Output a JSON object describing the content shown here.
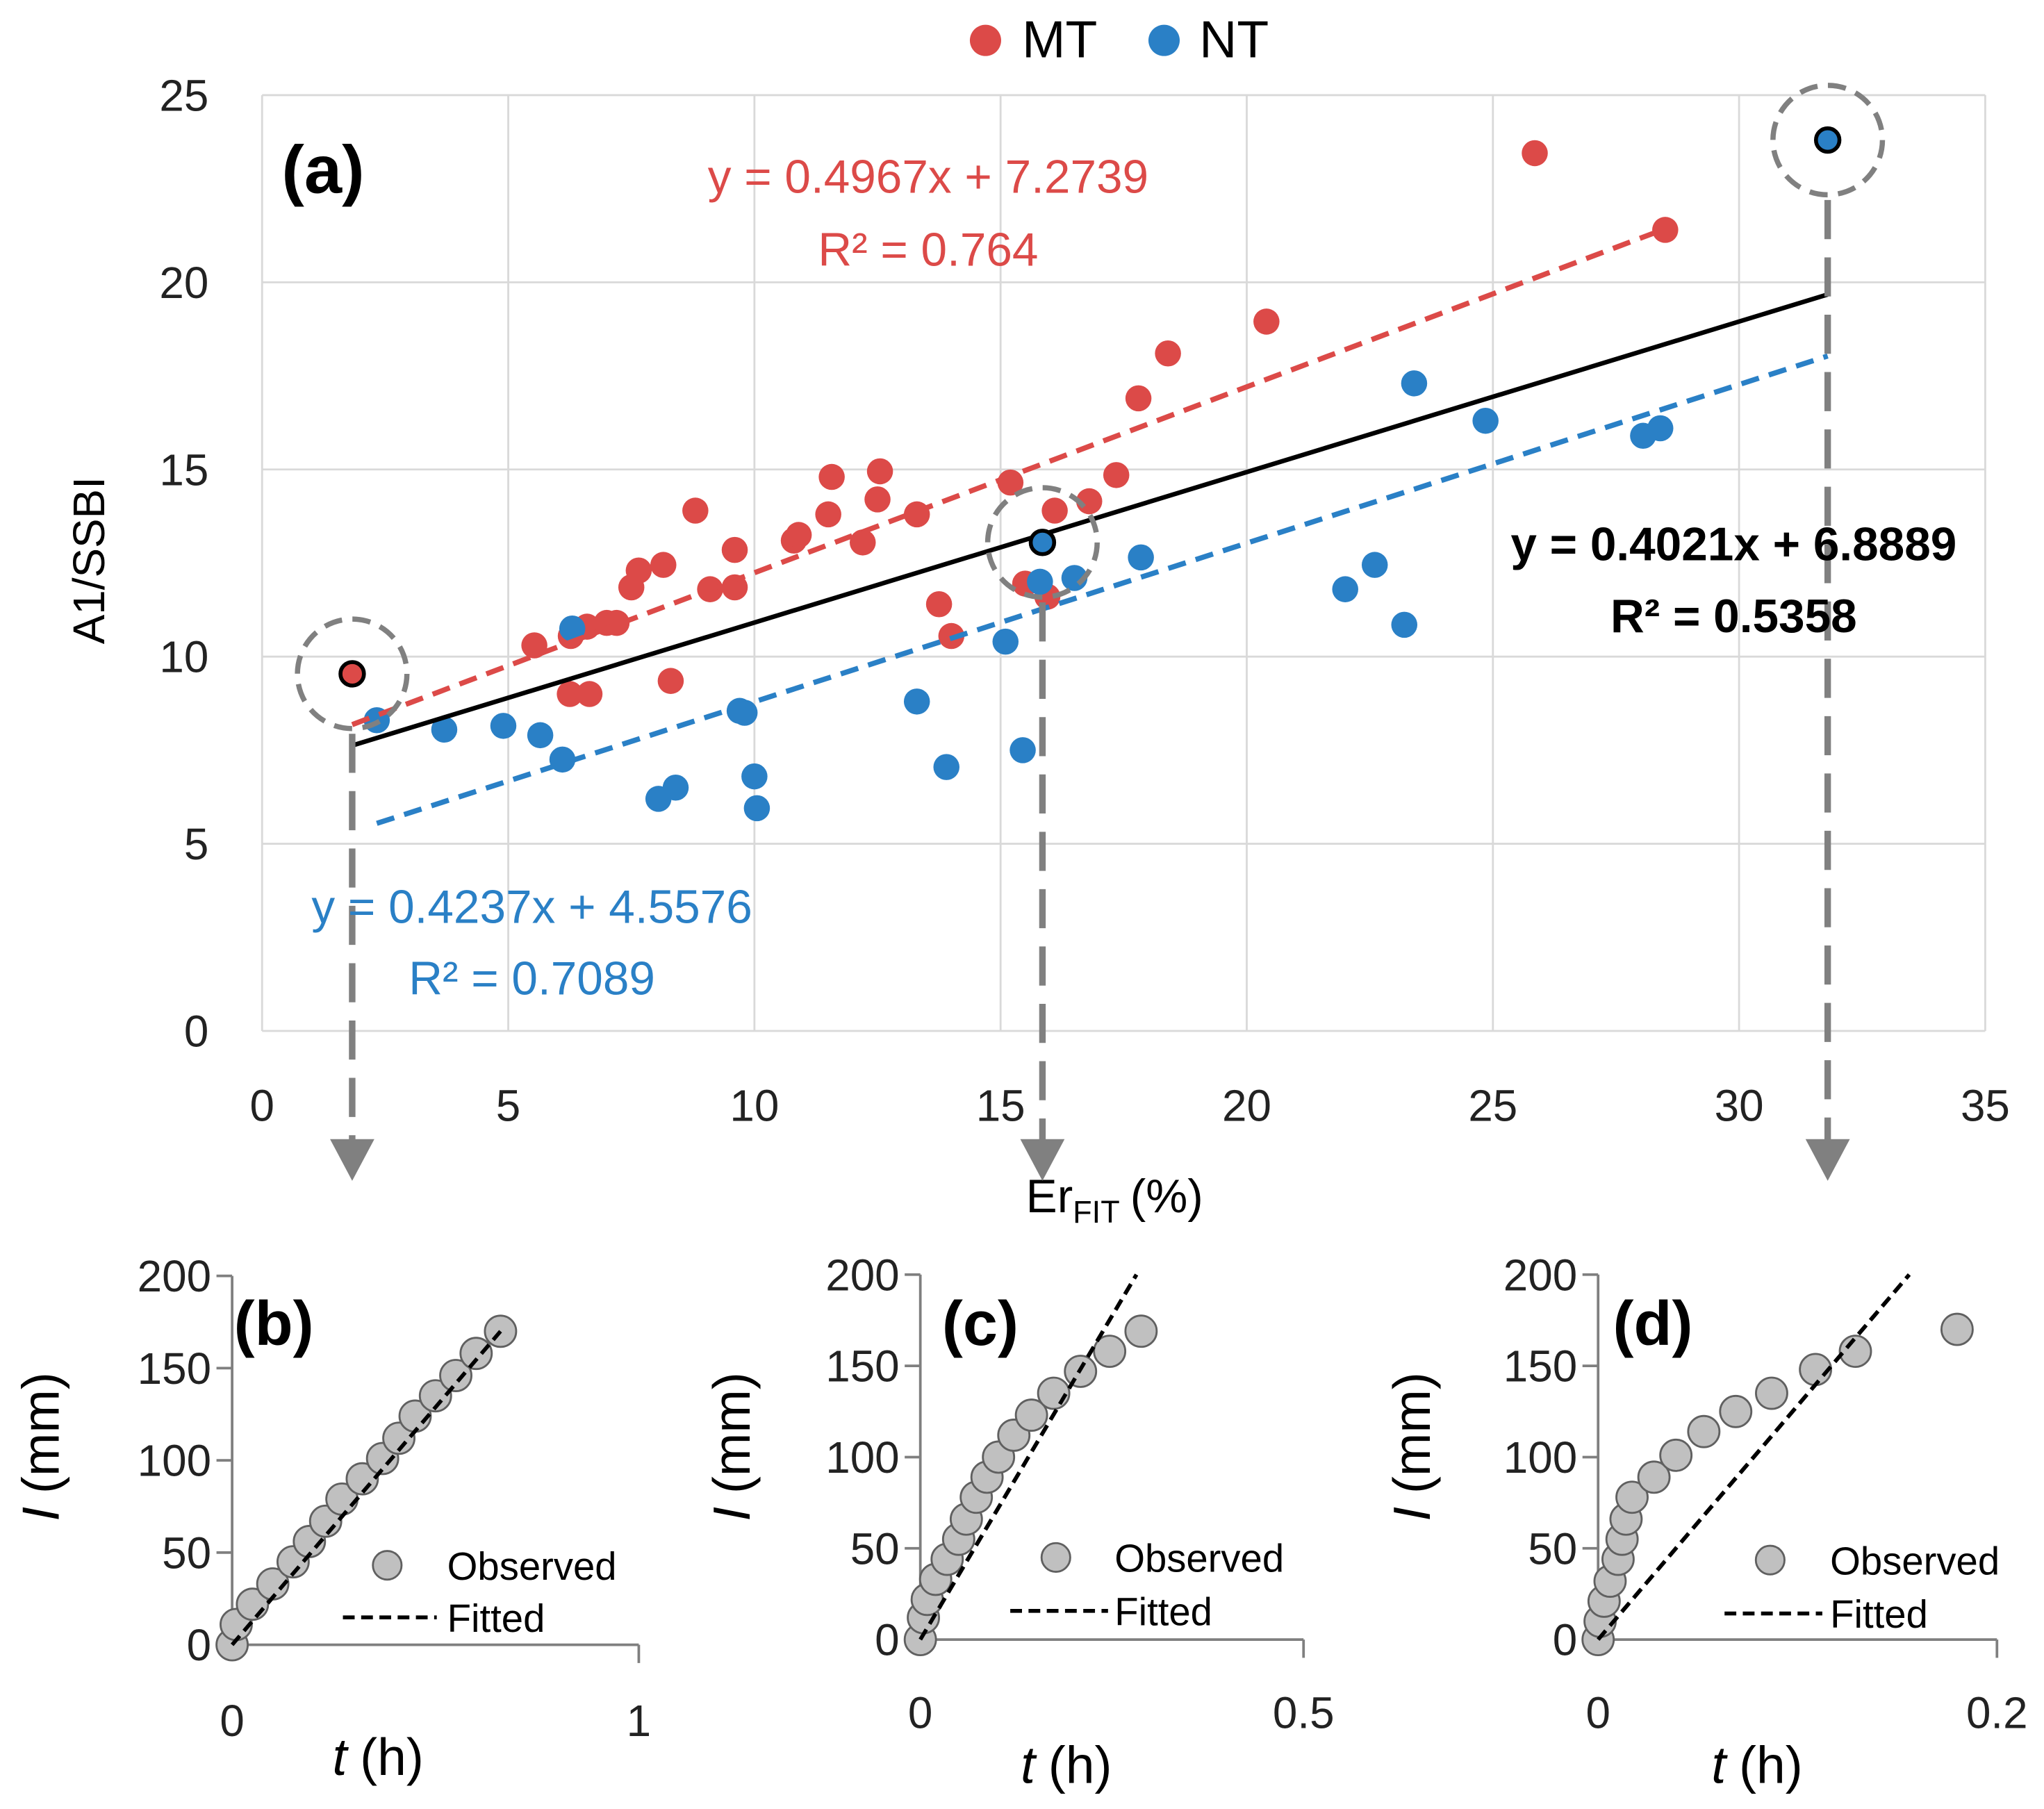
{
  "legend": {
    "position": "top",
    "items": [
      {
        "name": "MT",
        "color": "#dc4a48"
      },
      {
        "name": "NT",
        "color": "#2a80c6"
      }
    ]
  },
  "chart_data": [
    {
      "type": "scatter",
      "panel_label": "(a)",
      "xlabel": {
        "main": "Er",
        "sub": "FIT",
        "unit": "(%)"
      },
      "ylabel": "A1/SSBI",
      "xlim": [
        0,
        35
      ],
      "ylim": [
        0,
        25
      ],
      "xticks": [
        "0",
        "5",
        "10",
        "15",
        "20",
        "25",
        "30",
        "35"
      ],
      "yticks": [
        "0",
        "5",
        "10",
        "15",
        "20",
        "25"
      ],
      "grid": true,
      "series": [
        {
          "name": "MT",
          "color": "#dc4a48",
          "points": [
            [
              5.53,
              10.3
            ],
            [
              6.27,
              10.55
            ],
            [
              6.25,
              9.0
            ],
            [
              6.65,
              9.0
            ],
            [
              6.6,
              10.8
            ],
            [
              7.0,
              10.9
            ],
            [
              7.2,
              10.9
            ],
            [
              7.5,
              11.85
            ],
            [
              7.65,
              12.3
            ],
            [
              8.15,
              12.45
            ],
            [
              8.3,
              9.35
            ],
            [
              8.8,
              13.9
            ],
            [
              9.1,
              11.8
            ],
            [
              9.6,
              11.85
            ],
            [
              9.6,
              12.85
            ],
            [
              10.8,
              13.1
            ],
            [
              10.9,
              13.25
            ],
            [
              11.5,
              13.8
            ],
            [
              11.57,
              14.8
            ],
            [
              12.2,
              13.05
            ],
            [
              12.5,
              14.2
            ],
            [
              12.55,
              14.95
            ],
            [
              13.3,
              13.8
            ],
            [
              13.75,
              11.4
            ],
            [
              14.0,
              10.55
            ],
            [
              15.2,
              14.65
            ],
            [
              15.5,
              11.95
            ],
            [
              15.95,
              11.6
            ],
            [
              16.1,
              13.9
            ],
            [
              16.8,
              14.15
            ],
            [
              17.35,
              14.85
            ],
            [
              17.8,
              16.9
            ],
            [
              18.4,
              18.1
            ],
            [
              20.4,
              18.95
            ],
            [
              25.85,
              23.45
            ],
            [
              28.5,
              21.4
            ]
          ],
          "trendline": {
            "equation": "y = 0.4967x + 7.2739",
            "r2": "R² = 0.764",
            "slope": 0.4967,
            "intercept": 7.2739,
            "x_range": [
              1.83,
              28.5
            ]
          }
        },
        {
          "name": "NT",
          "color": "#2a80c6",
          "points": [
            [
              2.33,
              8.3
            ],
            [
              3.7,
              8.05
            ],
            [
              4.9,
              8.15
            ],
            [
              5.65,
              7.9
            ],
            [
              6.1,
              7.25
            ],
            [
              6.3,
              10.75
            ],
            [
              9.7,
              8.55
            ],
            [
              9.8,
              8.5
            ],
            [
              8.05,
              6.2
            ],
            [
              8.4,
              6.5
            ],
            [
              10.0,
              6.8
            ],
            [
              10.05,
              5.95
            ],
            [
              13.3,
              8.8
            ],
            [
              13.9,
              7.05
            ],
            [
              15.1,
              10.4
            ],
            [
              15.45,
              7.5
            ],
            [
              15.8,
              12.0
            ],
            [
              16.5,
              12.1
            ],
            [
              17.85,
              12.65
            ],
            [
              22.0,
              11.8
            ],
            [
              22.6,
              12.45
            ],
            [
              23.2,
              10.85
            ],
            [
              23.4,
              17.3
            ],
            [
              24.85,
              16.3
            ],
            [
              28.05,
              15.9
            ],
            [
              28.4,
              16.1
            ]
          ],
          "trendline": {
            "equation": "y = 0.4237x + 4.5576",
            "r2": "R² = 0.7089",
            "slope": 0.4237,
            "intercept": 4.5576,
            "x_range": [
              2.33,
              31.8
            ]
          }
        }
      ],
      "overall_trendline": {
        "equation": "y = 0.4021x + 6.8889",
        "r2": "R² = 0.5358",
        "slope": 0.4021,
        "intercept": 6.8889,
        "x_range": [
          1.83,
          31.8
        ],
        "color": "#000000"
      },
      "highlighted_points": [
        {
          "series": "MT",
          "x": 1.83,
          "y": 9.54,
          "detail_panel": "(b)"
        },
        {
          "series": "NT",
          "x": 15.85,
          "y": 13.05,
          "detail_panel": "(c)"
        },
        {
          "series": "NT",
          "x": 31.8,
          "y": 23.8,
          "detail_panel": "(d)"
        }
      ]
    },
    {
      "type": "scatter",
      "panel_label": "(b)",
      "xlabel": {
        "var": "t",
        "unit": "(h)"
      },
      "ylabel": {
        "var": "I",
        "unit": "(mm)"
      },
      "xlim": [
        0,
        1
      ],
      "ylim": [
        0,
        200
      ],
      "xticks": [
        "0",
        "1"
      ],
      "yticks": [
        "0",
        "50",
        "100",
        "150",
        "200"
      ],
      "legend": {
        "observed": "Observed",
        "fitted": "Fitted"
      },
      "observed": [
        [
          0,
          0
        ],
        [
          0.01,
          11
        ],
        [
          0.05,
          22
        ],
        [
          0.1,
          33
        ],
        [
          0.15,
          45
        ],
        [
          0.19,
          56
        ],
        [
          0.23,
          67
        ],
        [
          0.27,
          79
        ],
        [
          0.32,
          90
        ],
        [
          0.37,
          101
        ],
        [
          0.41,
          112
        ],
        [
          0.45,
          124
        ],
        [
          0.5,
          135
        ],
        [
          0.55,
          146
        ],
        [
          0.6,
          158
        ],
        [
          0.66,
          170
        ]
      ],
      "fitted": [
        [
          0,
          0
        ],
        [
          0.66,
          170
        ]
      ]
    },
    {
      "type": "scatter",
      "panel_label": "(c)",
      "xlabel": {
        "var": "t",
        "unit": "(h)"
      },
      "ylabel": {
        "var": "I",
        "unit": "(mm)"
      },
      "xlim": [
        0,
        0.5
      ],
      "ylim": [
        0,
        200
      ],
      "xticks": [
        "0",
        "0.5"
      ],
      "yticks": [
        "0",
        "50",
        "100",
        "150",
        "200"
      ],
      "legend": {
        "observed": "Observed",
        "fitted": "Fitted"
      },
      "observed": [
        [
          0,
          0
        ],
        [
          0.004,
          12
        ],
        [
          0.009,
          22
        ],
        [
          0.02,
          33
        ],
        [
          0.035,
          44
        ],
        [
          0.05,
          55
        ],
        [
          0.06,
          66
        ],
        [
          0.073,
          78
        ],
        [
          0.087,
          89
        ],
        [
          0.102,
          100
        ],
        [
          0.122,
          112
        ],
        [
          0.145,
          123
        ],
        [
          0.174,
          135
        ],
        [
          0.209,
          147
        ],
        [
          0.247,
          158
        ],
        [
          0.288,
          169
        ]
      ],
      "fitted": [
        [
          0,
          0
        ],
        [
          0.282,
          200
        ]
      ]
    },
    {
      "type": "scatter",
      "panel_label": "(d)",
      "xlabel": {
        "var": "t",
        "unit": "(h)"
      },
      "ylabel": {
        "var": "I",
        "unit": "(mm)"
      },
      "xlim": [
        0,
        0.2
      ],
      "ylim": [
        0,
        200
      ],
      "xticks": [
        "0",
        "0.2"
      ],
      "yticks": [
        "0",
        "50",
        "100",
        "150",
        "200"
      ],
      "legend": {
        "observed": "Observed",
        "fitted": "Fitted"
      },
      "observed": [
        [
          0,
          0
        ],
        [
          0.001,
          10
        ],
        [
          0.003,
          21
        ],
        [
          0.006,
          32
        ],
        [
          0.01,
          44
        ],
        [
          0.012,
          55
        ],
        [
          0.014,
          66
        ],
        [
          0.017,
          78
        ],
        [
          0.028,
          89
        ],
        [
          0.039,
          101
        ],
        [
          0.053,
          114
        ],
        [
          0.069,
          125
        ],
        [
          0.087,
          135
        ],
        [
          0.109,
          148
        ],
        [
          0.129,
          158
        ],
        [
          0.18,
          170
        ]
      ],
      "fitted": [
        [
          0,
          0
        ],
        [
          0.156,
          200
        ]
      ]
    }
  ]
}
